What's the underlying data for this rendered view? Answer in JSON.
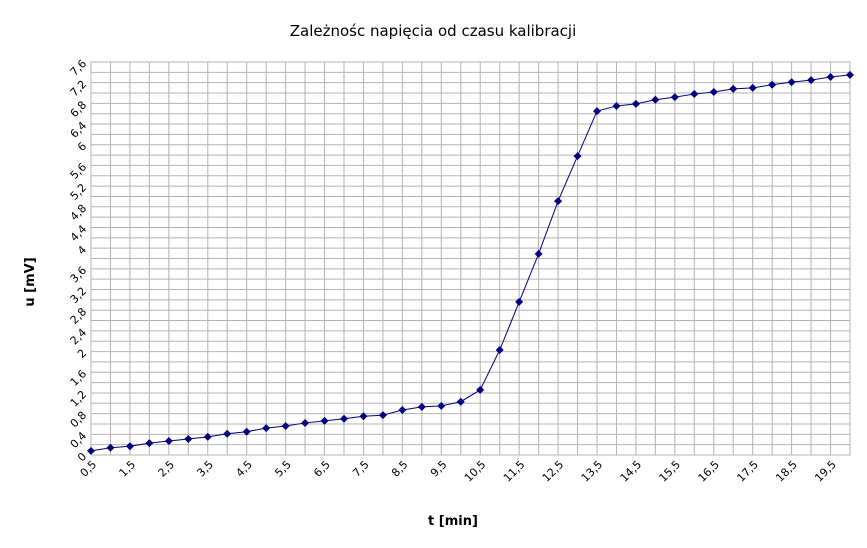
{
  "chart_data": {
    "type": "line",
    "title": "Zależnośc napięcia od czasu kalibracji",
    "x_label": "t [min]",
    "y_label": "u [mV]",
    "categories": [
      "0,5",
      null,
      "1,5",
      null,
      "2,5",
      null,
      "3,5",
      null,
      "4,5",
      null,
      "5,5",
      null,
      "6,5",
      null,
      "7,5",
      null,
      "8,5",
      null,
      "9,5",
      null,
      "10,5",
      null,
      "11,5",
      null,
      "12,5",
      null,
      "13,5",
      null,
      "14,5",
      null,
      "15,5",
      null,
      "16,5",
      null,
      "17,5",
      null,
      "18,5",
      null,
      "19,5",
      null
    ],
    "series": [
      {
        "color": "#000080",
        "values": [
          0.08,
          0.14,
          0.17,
          0.23,
          0.27,
          0.31,
          0.35,
          0.41,
          0.45,
          0.52,
          0.56,
          0.62,
          0.66,
          0.7,
          0.75,
          0.77,
          0.87,
          0.93,
          0.95,
          1.03,
          1.26,
          2.03,
          2.96,
          3.89,
          4.91,
          5.78,
          6.65,
          6.75,
          6.79,
          6.87,
          6.92,
          6.98,
          7.02,
          7.08,
          7.1,
          7.16,
          7.21,
          7.25,
          7.31,
          7.35
        ]
      }
    ],
    "ylim": [
      0,
      7.6
    ],
    "yticks": [
      0,
      {
        "value": 0.4,
        "label": "0,4"
      },
      {
        "value": 0.8,
        "label": "0,8"
      },
      {
        "value": 1.2,
        "label": "1,2"
      },
      {
        "value": 1.6,
        "label": "1,6"
      },
      2,
      {
        "value": 2.4,
        "label": "2,4"
      },
      {
        "value": 2.8,
        "label": "2,8"
      },
      {
        "value": 3.2,
        "label": "3,2"
      },
      {
        "value": 3.6,
        "label": "3,6"
      },
      4,
      {
        "value": 4.4,
        "label": "4,4"
      },
      {
        "value": 4.8,
        "label": "4,8"
      },
      {
        "value": 5.2,
        "label": "5,2"
      },
      {
        "value": 5.6,
        "label": "5,6"
      },
      6,
      {
        "value": 6.4,
        "label": "6,4"
      },
      {
        "value": 6.8,
        "label": "6,8"
      },
      {
        "value": 7.2,
        "label": "7,2"
      },
      {
        "value": 7.6,
        "label": "7,6"
      }
    ],
    "grid": true,
    "minor_grid": true
  }
}
